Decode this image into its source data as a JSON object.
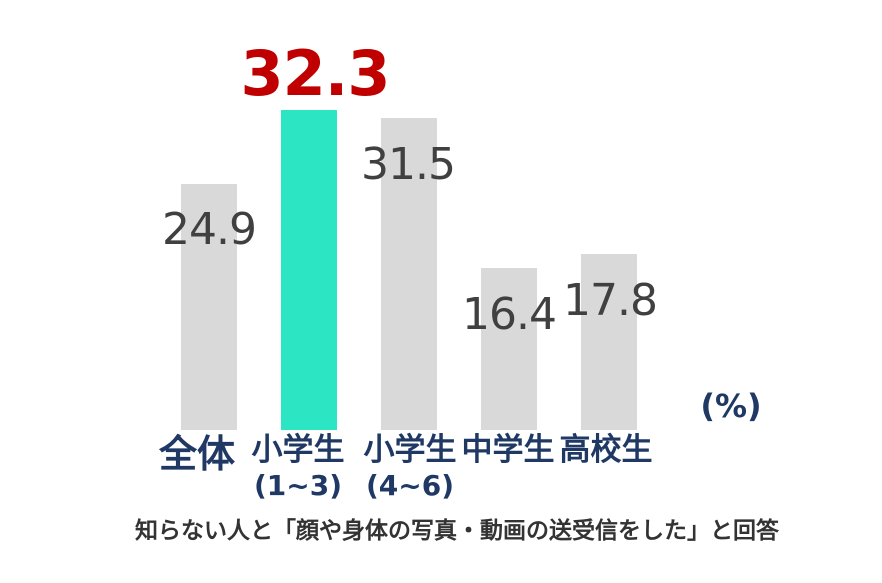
{
  "chart_data": {
    "type": "bar",
    "title": "",
    "unit_label": "(%)",
    "caption": "知らない人と「顔や身体の写真・動画の送受信をした」と回答",
    "categories": [
      "全体",
      "小学生(1~3)",
      "小学生(4~6)",
      "中学生",
      "高校生"
    ],
    "values": [
      24.9,
      32.3,
      31.5,
      16.4,
      17.8
    ],
    "bars": [
      {
        "label": "全体",
        "sublabel": "",
        "value": 24.9,
        "value_display": "24.9",
        "highlighted": false
      },
      {
        "label": "小学生",
        "sublabel": "(1~3)",
        "value": 32.3,
        "value_display": "32.3",
        "highlighted": true
      },
      {
        "label": "小学生",
        "sublabel": "(4~6)",
        "value": 31.5,
        "value_display": "31.5",
        "highlighted": false
      },
      {
        "label": "中学生",
        "sublabel": "",
        "value": 16.4,
        "value_display": "16.4",
        "highlighted": false
      },
      {
        "label": "高校生",
        "sublabel": "",
        "value": 17.8,
        "value_display": "17.8",
        "highlighted": false
      }
    ],
    "colors": {
      "bar_default": "#D9D9D9",
      "bar_highlight": "#2BE5C3",
      "value_label_default": "#404040",
      "value_label_highlight": "#C00000",
      "category_label": "#1F3864",
      "caption": "#333333",
      "background": "#FFFFFF"
    },
    "ylim": [
      0,
      35
    ],
    "grid": false,
    "legend": false,
    "value_labels_shown": true,
    "axis_lines_shown": false
  }
}
